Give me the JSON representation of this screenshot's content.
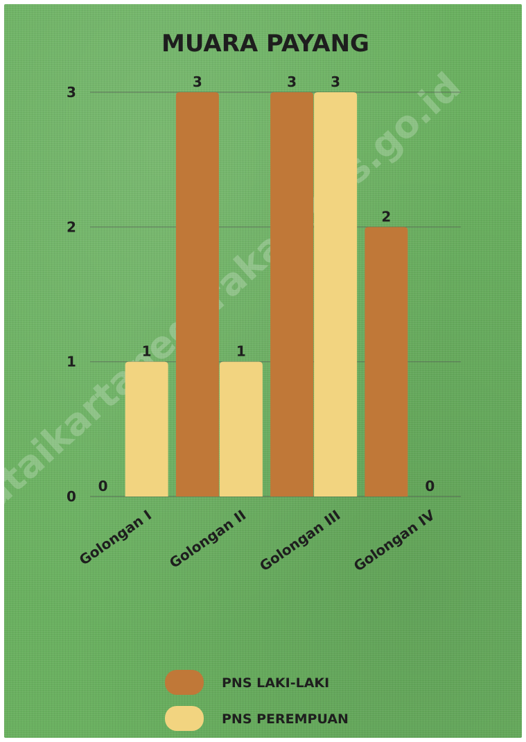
{
  "watermark": "https://kutaikartanegarakab.bps.go.id",
  "chart_data": {
    "type": "bar",
    "title": "MUARA PAYANG",
    "categories": [
      "Golongan I",
      "Golongan II",
      "Golongan III",
      "Golongan IV"
    ],
    "series": [
      {
        "name": "PNS LAKI-LAKI",
        "values": [
          0,
          3,
          3,
          2
        ],
        "color": "#c07838"
      },
      {
        "name": "PNS PEREMPUAN",
        "values": [
          1,
          1,
          3,
          0
        ],
        "color": "#f2d480"
      }
    ],
    "yticks": [
      0,
      1,
      2,
      3
    ],
    "ylim": [
      0,
      3
    ],
    "grid": true,
    "legend_position": "bottom"
  }
}
